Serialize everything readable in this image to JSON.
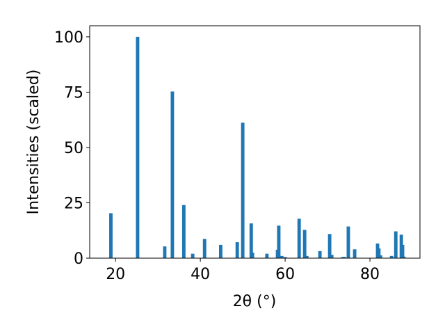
{
  "chart_data": {
    "type": "bar",
    "xlabel": "2θ (°)",
    "ylabel": "Intensities (scaled)",
    "x": [
      18.9,
      25.2,
      31.6,
      33.4,
      36.1,
      38.2,
      41.0,
      44.8,
      48.7,
      50.0,
      52.0,
      52.3,
      55.7,
      58.2,
      58.5,
      59.2,
      60.0,
      63.3,
      64.6,
      65.1,
      68.2,
      70.5,
      71.0,
      73.6,
      73.9,
      74.9,
      76.4,
      81.8,
      82.1,
      82.5,
      85.1,
      86.1,
      87.4,
      87.7,
      88.0
    ],
    "values": [
      20.3,
      100,
      5.3,
      75.3,
      24,
      2,
      8.7,
      6,
      7.2,
      61.2,
      15.7,
      2.5,
      2,
      3.8,
      14.7,
      1,
      0.5,
      17.8,
      12.8,
      1,
      3.2,
      10.9,
      1.5,
      0.5,
      0.6,
      14.3,
      4,
      6.6,
      4.4,
      1.3,
      1,
      12.1,
      10.6,
      6,
      0.7
    ],
    "color": "#1f77b4",
    "xlim": [
      13.9,
      91.8
    ],
    "xticks": [
      20,
      40,
      60,
      80
    ],
    "ylim": [
      0,
      105
    ],
    "yticks": [
      0,
      25,
      50,
      75,
      100
    ]
  }
}
